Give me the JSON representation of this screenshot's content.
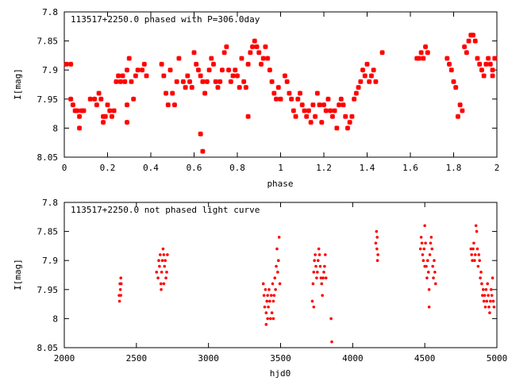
{
  "chart_data": [
    {
      "type": "scatter",
      "title": "113517+2250.0 phased with P=306.0day",
      "xlabel": "phase",
      "ylabel": "I[mag]",
      "xlim": [
        0,
        2
      ],
      "ylim": [
        7.8,
        8.05
      ],
      "y_inverted": true,
      "x_ticks": [
        "0",
        "0.2",
        "0.4",
        "0.6",
        "0.8",
        "1",
        "1.2",
        "1.4",
        "1.6",
        "1.8",
        "2"
      ],
      "y_ticks": [
        "7.8",
        "7.85",
        "7.9",
        "7.95",
        "8",
        "8.05"
      ],
      "marker": "star",
      "color": "#ff0000",
      "points": [
        [
          0.01,
          7.89
        ],
        [
          0.03,
          7.89
        ],
        [
          0.03,
          7.95
        ],
        [
          0.04,
          7.96
        ],
        [
          0.05,
          7.97
        ],
        [
          0.06,
          7.97
        ],
        [
          0.07,
          7.98
        ],
        [
          0.08,
          7.97
        ],
        [
          0.07,
          8.0
        ],
        [
          0.09,
          7.97
        ],
        [
          0.12,
          7.95
        ],
        [
          0.14,
          7.95
        ],
        [
          0.15,
          7.96
        ],
        [
          0.16,
          7.94
        ],
        [
          0.17,
          7.95
        ],
        [
          0.18,
          7.98
        ],
        [
          0.18,
          7.99
        ],
        [
          0.19,
          7.98
        ],
        [
          0.2,
          7.96
        ],
        [
          0.21,
          7.97
        ],
        [
          0.22,
          7.98
        ],
        [
          0.23,
          7.97
        ],
        [
          0.24,
          7.92
        ],
        [
          0.25,
          7.91
        ],
        [
          0.26,
          7.92
        ],
        [
          0.27,
          7.91
        ],
        [
          0.28,
          7.92
        ],
        [
          0.29,
          7.9
        ],
        [
          0.29,
          7.96
        ],
        [
          0.29,
          7.99
        ],
        [
          0.3,
          7.88
        ],
        [
          0.31,
          7.92
        ],
        [
          0.32,
          7.95
        ],
        [
          0.33,
          7.91
        ],
        [
          0.34,
          7.9
        ],
        [
          0.36,
          7.9
        ],
        [
          0.37,
          7.89
        ],
        [
          0.38,
          7.91
        ],
        [
          0.45,
          7.89
        ],
        [
          0.46,
          7.91
        ],
        [
          0.47,
          7.94
        ],
        [
          0.48,
          7.96
        ],
        [
          0.49,
          7.9
        ],
        [
          0.5,
          7.94
        ],
        [
          0.51,
          7.96
        ],
        [
          0.52,
          7.92
        ],
        [
          0.53,
          7.88
        ],
        [
          0.55,
          7.92
        ],
        [
          0.56,
          7.93
        ],
        [
          0.57,
          7.91
        ],
        [
          0.58,
          7.92
        ],
        [
          0.59,
          7.93
        ],
        [
          0.6,
          7.87
        ],
        [
          0.61,
          7.89
        ],
        [
          0.62,
          7.9
        ],
        [
          0.63,
          7.91
        ],
        [
          0.64,
          7.92
        ],
        [
          0.65,
          7.94
        ],
        [
          0.66,
          7.92
        ],
        [
          0.67,
          7.9
        ],
        [
          0.68,
          7.88
        ],
        [
          0.69,
          7.89
        ],
        [
          0.63,
          8.01
        ],
        [
          0.64,
          8.04
        ],
        [
          0.7,
          7.92
        ],
        [
          0.71,
          7.93
        ],
        [
          0.72,
          7.92
        ],
        [
          0.73,
          7.9
        ],
        [
          0.74,
          7.87
        ],
        [
          0.75,
          7.86
        ],
        [
          0.76,
          7.9
        ],
        [
          0.77,
          7.92
        ],
        [
          0.78,
          7.91
        ],
        [
          0.79,
          7.9
        ],
        [
          0.8,
          7.91
        ],
        [
          0.81,
          7.93
        ],
        [
          0.82,
          7.88
        ],
        [
          0.83,
          7.92
        ],
        [
          0.84,
          7.93
        ],
        [
          0.85,
          7.89
        ],
        [
          0.86,
          7.87
        ],
        [
          0.87,
          7.86
        ],
        [
          0.88,
          7.85
        ],
        [
          0.89,
          7.86
        ],
        [
          0.9,
          7.87
        ],
        [
          0.91,
          7.89
        ],
        [
          0.92,
          7.88
        ],
        [
          0.93,
          7.86
        ],
        [
          0.85,
          7.98
        ],
        [
          0.94,
          7.88
        ],
        [
          0.95,
          7.9
        ],
        [
          0.96,
          7.92
        ],
        [
          0.97,
          7.94
        ],
        [
          0.98,
          7.95
        ],
        [
          0.99,
          7.93
        ],
        [
          1.0,
          7.95
        ],
        [
          1.02,
          7.91
        ],
        [
          1.03,
          7.92
        ],
        [
          1.04,
          7.94
        ],
        [
          1.05,
          7.95
        ],
        [
          1.06,
          7.97
        ],
        [
          1.07,
          7.98
        ],
        [
          1.08,
          7.95
        ],
        [
          1.09,
          7.94
        ],
        [
          1.1,
          7.96
        ],
        [
          1.11,
          7.97
        ],
        [
          1.12,
          7.98
        ],
        [
          1.13,
          7.97
        ],
        [
          1.14,
          7.99
        ],
        [
          1.15,
          7.96
        ],
        [
          1.16,
          7.98
        ],
        [
          1.17,
          7.94
        ],
        [
          1.18,
          7.96
        ],
        [
          1.19,
          7.99
        ],
        [
          1.2,
          7.96
        ],
        [
          1.21,
          7.97
        ],
        [
          1.22,
          7.95
        ],
        [
          1.23,
          7.97
        ],
        [
          1.24,
          7.98
        ],
        [
          1.25,
          7.97
        ],
        [
          1.26,
          8.0
        ],
        [
          1.27,
          7.96
        ],
        [
          1.28,
          7.95
        ],
        [
          1.29,
          7.96
        ],
        [
          1.3,
          7.98
        ],
        [
          1.31,
          8.0
        ],
        [
          1.32,
          7.99
        ],
        [
          1.33,
          7.98
        ],
        [
          1.34,
          7.95
        ],
        [
          1.35,
          7.94
        ],
        [
          1.36,
          7.93
        ],
        [
          1.37,
          7.92
        ],
        [
          1.38,
          7.9
        ],
        [
          1.39,
          7.91
        ],
        [
          1.4,
          7.89
        ],
        [
          1.41,
          7.92
        ],
        [
          1.42,
          7.91
        ],
        [
          1.43,
          7.9
        ],
        [
          1.44,
          7.92
        ],
        [
          1.47,
          7.87
        ],
        [
          1.63,
          7.88
        ],
        [
          1.64,
          7.88
        ],
        [
          1.65,
          7.87
        ],
        [
          1.66,
          7.88
        ],
        [
          1.67,
          7.86
        ],
        [
          1.68,
          7.87
        ],
        [
          1.77,
          7.88
        ],
        [
          1.78,
          7.89
        ],
        [
          1.79,
          7.9
        ],
        [
          1.8,
          7.92
        ],
        [
          1.81,
          7.93
        ],
        [
          1.82,
          7.98
        ],
        [
          1.83,
          7.96
        ],
        [
          1.84,
          7.97
        ],
        [
          1.85,
          7.86
        ],
        [
          1.86,
          7.87
        ],
        [
          1.87,
          7.85
        ],
        [
          1.88,
          7.84
        ],
        [
          1.89,
          7.84
        ],
        [
          1.9,
          7.85
        ],
        [
          1.91,
          7.88
        ],
        [
          1.92,
          7.89
        ],
        [
          1.93,
          7.9
        ],
        [
          1.94,
          7.91
        ],
        [
          1.95,
          7.89
        ],
        [
          1.96,
          7.88
        ],
        [
          1.97,
          7.89
        ],
        [
          1.98,
          7.9
        ],
        [
          1.99,
          7.88
        ],
        [
          1.98,
          7.91
        ]
      ]
    },
    {
      "type": "scatter",
      "title": "113517+2250.0 not phased light curve",
      "xlabel": "hjd0",
      "ylabel": "I[mag]",
      "xlim": [
        2000,
        5000
      ],
      "ylim": [
        7.8,
        8.05
      ],
      "y_inverted": true,
      "x_ticks": [
        "2000",
        "2500",
        "3000",
        "3500",
        "4000",
        "4500",
        "5000"
      ],
      "y_ticks": [
        "7.8",
        "7.85",
        "7.9",
        "7.95",
        "8",
        "8.05"
      ],
      "marker": "dot",
      "color": "#ff0000",
      "points": [
        [
          2380,
          7.96
        ],
        [
          2383,
          7.97
        ],
        [
          2386,
          7.94
        ],
        [
          2389,
          7.95
        ],
        [
          2392,
          7.93
        ],
        [
          2395,
          7.94
        ],
        [
          2392,
          7.96
        ],
        [
          2640,
          7.92
        ],
        [
          2650,
          7.93
        ],
        [
          2655,
          7.9
        ],
        [
          2660,
          7.91
        ],
        [
          2665,
          7.89
        ],
        [
          2670,
          7.94
        ],
        [
          2675,
          7.92
        ],
        [
          2680,
          7.9
        ],
        [
          2685,
          7.88
        ],
        [
          2690,
          7.89
        ],
        [
          2695,
          7.91
        ],
        [
          2700,
          7.9
        ],
        [
          2705,
          7.93
        ],
        [
          2710,
          7.92
        ],
        [
          2715,
          7.89
        ],
        [
          2672,
          7.95
        ],
        [
          2690,
          7.94
        ],
        [
          3380,
          7.94
        ],
        [
          3385,
          7.96
        ],
        [
          3390,
          7.98
        ],
        [
          3395,
          7.95
        ],
        [
          3400,
          7.99
        ],
        [
          3405,
          7.97
        ],
        [
          3410,
          7.96
        ],
        [
          3415,
          7.98
        ],
        [
          3420,
          7.95
        ],
        [
          3425,
          7.97
        ],
        [
          3430,
          8.0
        ],
        [
          3435,
          7.96
        ],
        [
          3440,
          7.99
        ],
        [
          3445,
          7.94
        ],
        [
          3450,
          7.97
        ],
        [
          3455,
          7.96
        ],
        [
          3460,
          7.93
        ],
        [
          3465,
          7.95
        ],
        [
          3470,
          7.91
        ],
        [
          3475,
          7.88
        ],
        [
          3480,
          7.92
        ],
        [
          3485,
          7.9
        ],
        [
          3490,
          7.86
        ],
        [
          3495,
          7.94
        ],
        [
          3400,
          8.01
        ],
        [
          3410,
          8.0
        ],
        [
          3450,
          8.0
        ],
        [
          3720,
          7.97
        ],
        [
          3725,
          7.94
        ],
        [
          3730,
          7.92
        ],
        [
          3735,
          7.9
        ],
        [
          3740,
          7.89
        ],
        [
          3745,
          7.91
        ],
        [
          3750,
          7.93
        ],
        [
          3755,
          7.92
        ],
        [
          3760,
          7.9
        ],
        [
          3765,
          7.88
        ],
        [
          3770,
          7.89
        ],
        [
          3775,
          7.91
        ],
        [
          3780,
          7.93
        ],
        [
          3785,
          7.94
        ],
        [
          3790,
          7.96
        ],
        [
          3795,
          7.93
        ],
        [
          3800,
          7.92
        ],
        [
          3805,
          7.91
        ],
        [
          3810,
          7.89
        ],
        [
          3815,
          7.93
        ],
        [
          3850,
          8.0
        ],
        [
          3855,
          8.04
        ],
        [
          3730,
          7.98
        ],
        [
          4160,
          7.87
        ],
        [
          4165,
          7.85
        ],
        [
          4170,
          7.86
        ],
        [
          4175,
          7.89
        ],
        [
          4172,
          7.9
        ],
        [
          4168,
          7.88
        ],
        [
          4470,
          7.88
        ],
        [
          4475,
          7.86
        ],
        [
          4480,
          7.87
        ],
        [
          4485,
          7.89
        ],
        [
          4490,
          7.9
        ],
        [
          4495,
          7.88
        ],
        [
          4500,
          7.84
        ],
        [
          4505,
          7.87
        ],
        [
          4510,
          7.91
        ],
        [
          4515,
          7.93
        ],
        [
          4520,
          7.9
        ],
        [
          4525,
          7.92
        ],
        [
          4530,
          7.95
        ],
        [
          4535,
          7.89
        ],
        [
          4540,
          7.87
        ],
        [
          4545,
          7.86
        ],
        [
          4550,
          7.88
        ],
        [
          4555,
          7.91
        ],
        [
          4560,
          7.93
        ],
        [
          4565,
          7.9
        ],
        [
          4570,
          7.92
        ],
        [
          4575,
          7.94
        ],
        [
          4530,
          7.98
        ],
        [
          4500,
          7.91
        ],
        [
          4820,
          7.88
        ],
        [
          4825,
          7.89
        ],
        [
          4830,
          7.9
        ],
        [
          4835,
          7.88
        ],
        [
          4840,
          7.87
        ],
        [
          4845,
          7.9
        ],
        [
          4850,
          7.89
        ],
        [
          4855,
          7.84
        ],
        [
          4860,
          7.85
        ],
        [
          4865,
          7.88
        ],
        [
          4870,
          7.91
        ],
        [
          4875,
          7.89
        ],
        [
          4880,
          7.9
        ],
        [
          4885,
          7.93
        ],
        [
          4890,
          7.92
        ],
        [
          4895,
          7.94
        ],
        [
          4900,
          7.96
        ],
        [
          4905,
          7.95
        ],
        [
          4910,
          7.97
        ],
        [
          4915,
          7.96
        ],
        [
          4920,
          7.98
        ],
        [
          4925,
          7.95
        ],
        [
          4930,
          7.97
        ],
        [
          4935,
          7.94
        ],
        [
          4940,
          7.96
        ],
        [
          4945,
          7.98
        ],
        [
          4950,
          7.99
        ],
        [
          4955,
          7.97
        ],
        [
          4960,
          7.95
        ],
        [
          4965,
          7.96
        ],
        [
          4970,
          7.93
        ],
        [
          4975,
          7.97
        ],
        [
          4980,
          7.98
        ]
      ]
    }
  ]
}
